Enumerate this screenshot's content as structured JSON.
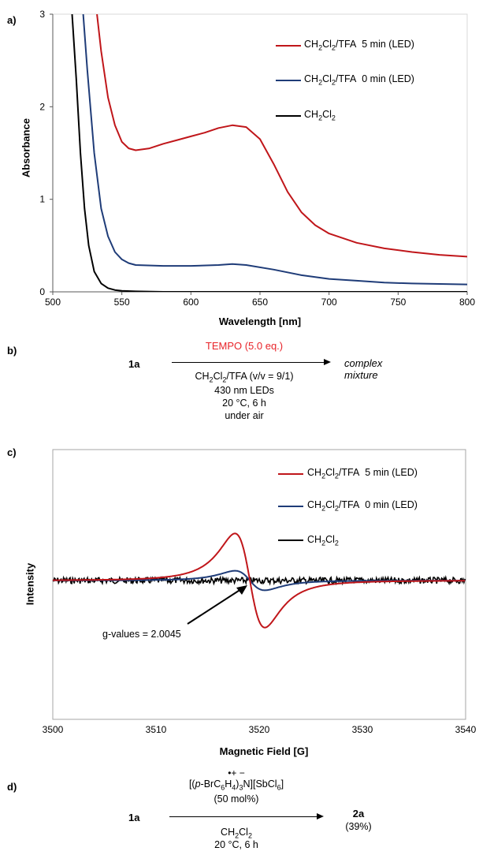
{
  "panels": {
    "a": "a)",
    "b": "b)",
    "c": "c)",
    "d": "d)"
  },
  "chart_data": [
    {
      "type": "line",
      "xlabel": "Wavelength [nm]",
      "ylabel": "Absorbance",
      "xlim": [
        500,
        800
      ],
      "ylim": [
        0,
        3
      ],
      "x_ticks": [
        "500",
        "550",
        "600",
        "650",
        "700",
        "750",
        "800"
      ],
      "y_ticks": [
        "0",
        "1",
        "2",
        "3"
      ],
      "grid": false,
      "legend_position": "top-right",
      "series": [
        {
          "name": "CH2Cl2/TFA  5 min (LED)",
          "color": "#c0161a",
          "x": [
            532,
            535,
            540,
            545,
            550,
            555,
            560,
            570,
            580,
            590,
            600,
            610,
            620,
            630,
            640,
            650,
            660,
            670,
            680,
            690,
            700,
            720,
            740,
            760,
            780,
            800
          ],
          "y": [
            3.0,
            2.6,
            2.1,
            1.8,
            1.62,
            1.55,
            1.53,
            1.55,
            1.6,
            1.64,
            1.68,
            1.72,
            1.77,
            1.8,
            1.78,
            1.65,
            1.38,
            1.08,
            0.86,
            0.72,
            0.63,
            0.53,
            0.47,
            0.43,
            0.4,
            0.38
          ]
        },
        {
          "name": "CH2Cl2/TFA  0 min (LED)",
          "color": "#1f3c78",
          "x": [
            522,
            525,
            530,
            535,
            540,
            545,
            550,
            555,
            560,
            580,
            600,
            620,
            630,
            640,
            660,
            680,
            700,
            720,
            740,
            760,
            780,
            800
          ],
          "y": [
            3.0,
            2.4,
            1.5,
            0.9,
            0.6,
            0.43,
            0.35,
            0.31,
            0.29,
            0.28,
            0.28,
            0.29,
            0.3,
            0.29,
            0.24,
            0.18,
            0.14,
            0.12,
            0.1,
            0.09,
            0.085,
            0.08
          ]
        },
        {
          "name": "CH2Cl2",
          "color": "#000000",
          "x": [
            514,
            517,
            520,
            523,
            526,
            530,
            535,
            540,
            545,
            550,
            560,
            580,
            600,
            650,
            700,
            750,
            800
          ],
          "y": [
            3.0,
            2.3,
            1.5,
            0.9,
            0.5,
            0.22,
            0.09,
            0.04,
            0.02,
            0.01,
            0.005,
            0.0,
            0.0,
            0.0,
            0.0,
            0.0,
            0.0
          ]
        }
      ]
    },
    {
      "type": "line",
      "xlabel": "Magnetic Field [G]",
      "ylabel": "Intensity",
      "xlim": [
        3500,
        3540
      ],
      "x_ticks": [
        "3500",
        "3510",
        "3520",
        "3530",
        "3540"
      ],
      "grid": false,
      "legend_position": "top-right",
      "annotation": "g-values  = 2.0045",
      "series": [
        {
          "name": "CH2Cl2/TFA  5 min (LED)",
          "color": "#c0161a"
        },
        {
          "name": "CH2Cl2/TFA  0 min (LED)",
          "color": "#1f3c78"
        },
        {
          "name": "CH2Cl2",
          "color": "#000000"
        }
      ]
    }
  ],
  "scheme_b": {
    "reactant": "1a",
    "reagent": "TEMPO (5.0 eq.)",
    "reagent_color": "#e8242a",
    "product": "complex mixture",
    "conditions": [
      "CH2Cl2/TFA (v/v = 9/1)",
      "430 nm LEDs",
      "20 °C, 6 h",
      "under air"
    ]
  },
  "scheme_d": {
    "reactant": "1a",
    "catalyst_charge": "•+ −",
    "catalyst": "[(p-BrC6H4)3N][SbCl6]",
    "loading": "(50 mol%)",
    "product": "2a",
    "yield": "(39%)",
    "conditions": [
      "CH2Cl2",
      "20 °C, 6 h"
    ]
  }
}
